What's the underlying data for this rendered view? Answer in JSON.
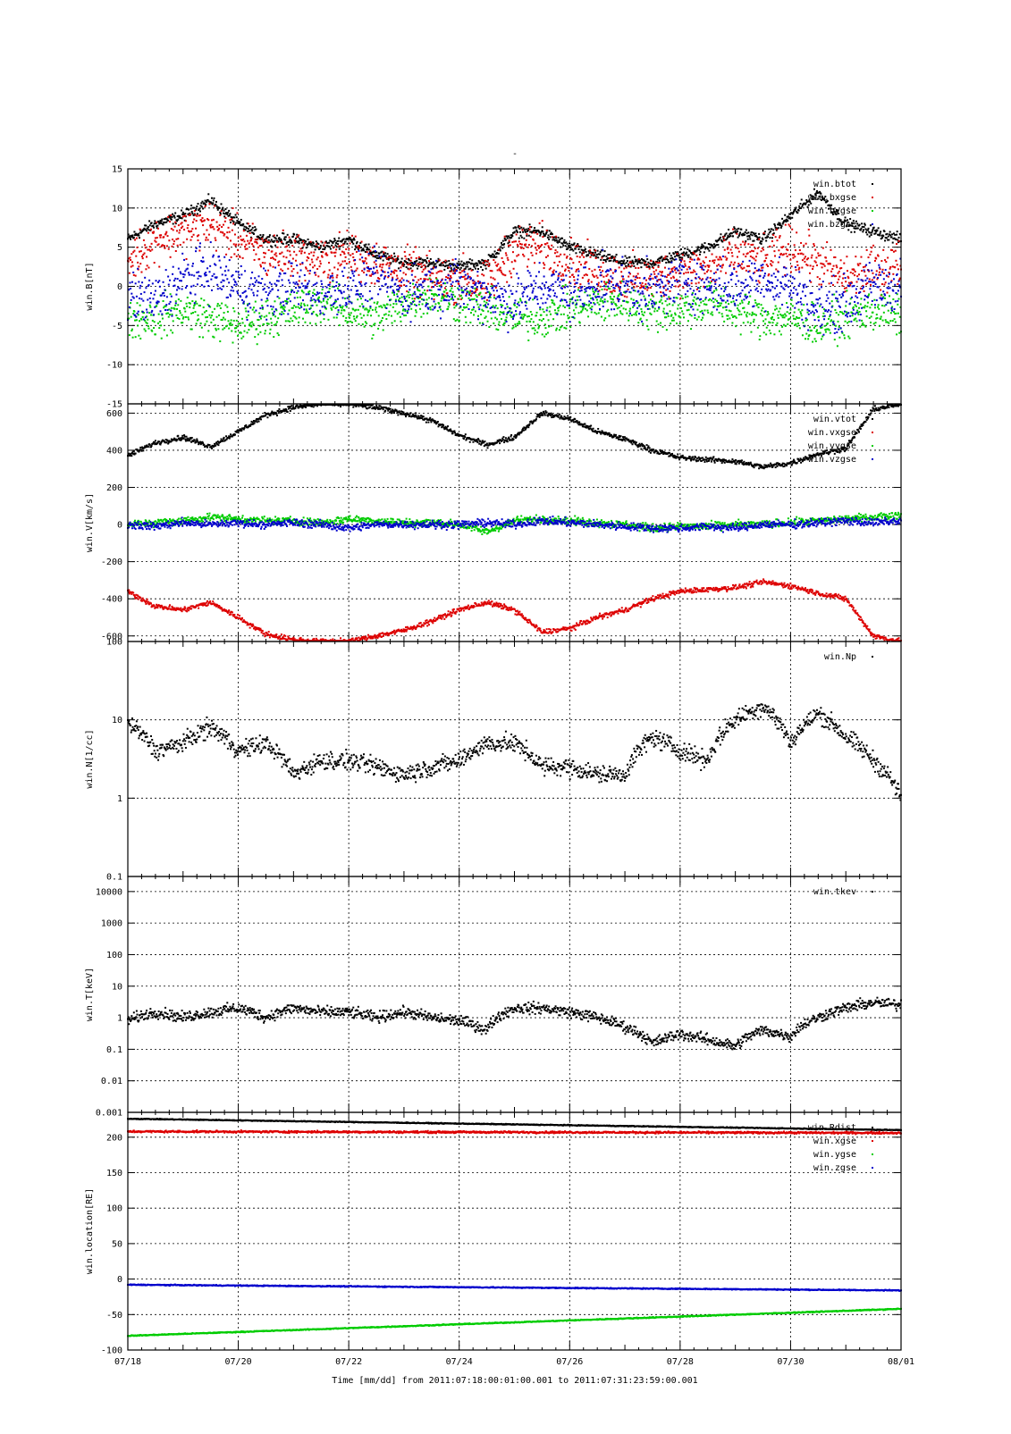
{
  "page_title": "-",
  "x_axis": {
    "label": "Time [mm/dd]  from 2011:07:18:00:01:00.001  to  2011:07:31:23:59:00.001",
    "tick_labels": [
      "07/18",
      "07/20",
      "07/22",
      "07/24",
      "07/26",
      "07/28",
      "07/30",
      "08/01"
    ],
    "range_days": [
      0,
      14
    ]
  },
  "colors": {
    "black": "#000000",
    "red": "#dd0000",
    "green": "#00cc00",
    "blue": "#0000cc"
  },
  "chart_data": [
    {
      "type": "scatter",
      "ylabel": "win.B[nT]",
      "ylim": [
        -15,
        15
      ],
      "scale": "linear",
      "yticks": [
        15,
        10,
        5,
        0,
        -5,
        -10,
        -15
      ],
      "grid": true,
      "legend": "top-right",
      "series": [
        {
          "name": "win.btot",
          "color": "black",
          "x": [
            0,
            0.5,
            1,
            1.5,
            2,
            2.5,
            3,
            3.5,
            4,
            4.5,
            5,
            5.5,
            6,
            6.5,
            7,
            7.5,
            8,
            8.5,
            9,
            9.5,
            10,
            10.5,
            11,
            11.5,
            12,
            12.5,
            13,
            13.5,
            14
          ],
          "values": [
            6,
            8,
            9,
            11,
            8,
            6,
            6,
            5,
            6,
            4,
            3,
            3,
            2.5,
            3,
            7,
            7,
            5,
            4,
            3,
            3,
            4,
            5,
            7,
            6,
            9,
            12,
            8,
            7,
            6
          ],
          "spread": 0.6
        },
        {
          "name": "win.bxgse",
          "color": "red",
          "x": [
            0,
            0.5,
            1,
            1.5,
            2,
            2.5,
            3,
            3.5,
            4,
            4.5,
            5,
            5.5,
            6,
            6.5,
            7,
            7.5,
            8,
            8.5,
            9,
            9.5,
            10,
            10.5,
            11,
            11.5,
            12,
            12.5,
            13,
            13.5,
            14
          ],
          "values": [
            3,
            6,
            7,
            8,
            6,
            4,
            4,
            3,
            4,
            3,
            2,
            1,
            1,
            0,
            5,
            5,
            3,
            2,
            1,
            1,
            2,
            2,
            4,
            3,
            5,
            3,
            1,
            2,
            3
          ],
          "spread": 2.5
        },
        {
          "name": "win.bygse",
          "color": "green",
          "x": [
            0,
            0.5,
            1,
            1.5,
            2,
            2.5,
            3,
            3.5,
            4,
            4.5,
            5,
            5.5,
            6,
            6.5,
            7,
            7.5,
            8,
            8.5,
            9,
            9.5,
            10,
            10.5,
            11,
            11.5,
            12,
            12.5,
            13,
            13.5,
            14
          ],
          "values": [
            -4,
            -4,
            -3,
            -4,
            -5,
            -4,
            -3,
            -2,
            -3,
            -4,
            -2,
            -1,
            -2,
            -3,
            -4,
            -4,
            -3,
            -2,
            -2,
            -3,
            -3,
            -2,
            -3,
            -4,
            -4,
            -5,
            -4,
            -3,
            -4
          ],
          "spread": 2.2
        },
        {
          "name": "win.bzgse",
          "color": "blue",
          "x": [
            0,
            0.5,
            1,
            1.5,
            2,
            2.5,
            3,
            3.5,
            4,
            4.5,
            5,
            5.5,
            6,
            6.5,
            7,
            7.5,
            8,
            8.5,
            9,
            9.5,
            10,
            10.5,
            11,
            11.5,
            12,
            12.5,
            13,
            13.5,
            14
          ],
          "values": [
            -1,
            -2,
            1,
            2,
            0,
            -1,
            0,
            -1,
            0,
            1,
            -1,
            0,
            0,
            -1,
            -2,
            0,
            -1,
            0,
            0,
            -1,
            1,
            0,
            0,
            1,
            0,
            -3,
            -2,
            0,
            0
          ],
          "spread": 2.8
        }
      ]
    },
    {
      "type": "scatter",
      "ylabel": "win.V[km/s]",
      "ylim": [
        -630,
        650
      ],
      "scale": "linear",
      "yticks": [
        600,
        400,
        200,
        0,
        -200,
        -400,
        -600
      ],
      "grid": true,
      "legend": "top-right",
      "series": [
        {
          "name": "win.vtot",
          "color": "black",
          "x": [
            0,
            0.5,
            1,
            1.5,
            2,
            2.5,
            3,
            3.5,
            4,
            4.5,
            5,
            5.5,
            6,
            6.5,
            7,
            7.5,
            8,
            8.5,
            9,
            9.5,
            10,
            10.5,
            11,
            11.5,
            12,
            12.5,
            13,
            13.5,
            14
          ],
          "values": [
            370,
            440,
            470,
            420,
            500,
            590,
            630,
            650,
            650,
            630,
            600,
            560,
            480,
            430,
            470,
            600,
            570,
            500,
            460,
            400,
            360,
            350,
            340,
            310,
            330,
            380,
            410,
            620,
            650
          ],
          "spread": 12
        },
        {
          "name": "win.vxgse",
          "color": "red",
          "x": [
            0,
            0.5,
            1,
            1.5,
            2,
            2.5,
            3,
            3.5,
            4,
            4.5,
            5,
            5.5,
            6,
            6.5,
            7,
            7.5,
            8,
            8.5,
            9,
            9.5,
            10,
            10.5,
            11,
            11.5,
            12,
            12.5,
            13,
            13.5,
            14
          ],
          "values": [
            -360,
            -440,
            -460,
            -420,
            -500,
            -590,
            -620,
            -630,
            -630,
            -600,
            -570,
            -520,
            -460,
            -420,
            -460,
            -580,
            -560,
            -500,
            -460,
            -400,
            -360,
            -350,
            -340,
            -310,
            -330,
            -370,
            -400,
            -600,
            -630
          ],
          "spread": 12
        },
        {
          "name": "win.vygse",
          "color": "green",
          "x": [
            0,
            0.5,
            1,
            1.5,
            2,
            2.5,
            3,
            3.5,
            4,
            4.5,
            5,
            5.5,
            6,
            6.5,
            7,
            7.5,
            8,
            8.5,
            9,
            9.5,
            10,
            10.5,
            11,
            11.5,
            12,
            12.5,
            13,
            13.5,
            14
          ],
          "values": [
            0,
            10,
            20,
            40,
            30,
            20,
            20,
            10,
            30,
            20,
            10,
            10,
            0,
            -40,
            20,
            30,
            20,
            10,
            0,
            -20,
            -10,
            -10,
            0,
            0,
            10,
            20,
            30,
            40,
            50
          ],
          "spread": 18
        },
        {
          "name": "win.vzgse",
          "color": "blue",
          "x": [
            0,
            0.5,
            1,
            1.5,
            2,
            2.5,
            3,
            3.5,
            4,
            4.5,
            5,
            5.5,
            6,
            6.5,
            7,
            7.5,
            8,
            8.5,
            9,
            9.5,
            10,
            10.5,
            11,
            11.5,
            12,
            12.5,
            13,
            13.5,
            14
          ],
          "values": [
            0,
            -10,
            10,
            0,
            10,
            0,
            10,
            0,
            -20,
            0,
            0,
            0,
            0,
            10,
            0,
            20,
            10,
            0,
            -10,
            -20,
            -20,
            -10,
            -20,
            0,
            0,
            10,
            20,
            10,
            20
          ],
          "spread": 18
        }
      ]
    },
    {
      "type": "scatter",
      "ylabel": "win.N[1/cc]",
      "ylim": [
        0.1,
        100
      ],
      "scale": "log",
      "yticks": [
        100,
        10,
        1,
        0.1
      ],
      "grid": true,
      "legend": "top-right",
      "series": [
        {
          "name": "win.Np",
          "color": "black",
          "x": [
            0,
            0.5,
            1,
            1.5,
            2,
            2.5,
            3,
            3.5,
            4,
            4.5,
            5,
            5.5,
            6,
            6.5,
            7,
            7.5,
            8,
            8.5,
            9,
            9.5,
            10,
            10.5,
            11,
            11.5,
            12,
            12.5,
            13,
            13.5,
            14
          ],
          "values": [
            9,
            4,
            5,
            8,
            4,
            5,
            2,
            3,
            3,
            2.5,
            2,
            2.5,
            3,
            5,
            5,
            2.5,
            2.5,
            2,
            2,
            6,
            4,
            3,
            10,
            15,
            5,
            12,
            6,
            3,
            1
          ],
          "spread": 0.1
        }
      ]
    },
    {
      "type": "scatter",
      "ylabel": "win.T[keV]",
      "ylim": [
        0.001,
        30000
      ],
      "scale": "log",
      "yticks": [
        10000,
        1000,
        100,
        10,
        1,
        0.1,
        0.01,
        0.001
      ],
      "tick_label_notes": "bottom tick label overprinted as 0.001 / 1e-04",
      "grid": true,
      "legend": "top-right",
      "series": [
        {
          "name": "win.tkev",
          "color": "black",
          "x": [
            0,
            0.5,
            1,
            1.5,
            2,
            2.5,
            3,
            3.5,
            4,
            4.5,
            5,
            5.5,
            6,
            6.5,
            7,
            7.5,
            8,
            8.5,
            9,
            9.5,
            10,
            10.5,
            11,
            11.5,
            12,
            12.5,
            13,
            13.5,
            14
          ],
          "values": [
            0.8,
            1.5,
            1,
            1.5,
            2,
            1,
            2,
            1.5,
            1.5,
            1,
            1.5,
            1,
            0.8,
            0.4,
            2,
            2,
            1.5,
            1,
            0.5,
            0.15,
            0.3,
            0.2,
            0.12,
            0.4,
            0.25,
            1,
            2,
            3,
            2.5
          ],
          "spread": 0.15
        }
      ]
    },
    {
      "type": "scatter",
      "ylabel": "win.location[RE]",
      "ylim": [
        -100,
        235
      ],
      "scale": "linear",
      "yticks": [
        200,
        150,
        100,
        50,
        0,
        -50,
        -100
      ],
      "grid": true,
      "legend": "top-right",
      "series": [
        {
          "name": "win.Rdist",
          "color": "black",
          "x": [
            0,
            14
          ],
          "values": [
            226,
            210
          ],
          "spread": 0.5
        },
        {
          "name": "win.xgse",
          "color": "red",
          "x": [
            0,
            14
          ],
          "values": [
            208,
            206
          ],
          "spread": 1.2
        },
        {
          "name": "win.ygse",
          "color": "green",
          "x": [
            0,
            14
          ],
          "values": [
            -80,
            -42
          ],
          "spread": 0.6
        },
        {
          "name": "win.zgse",
          "color": "blue",
          "x": [
            0,
            14
          ],
          "values": [
            -8,
            -16
          ],
          "spread": 0.6
        }
      ]
    }
  ]
}
